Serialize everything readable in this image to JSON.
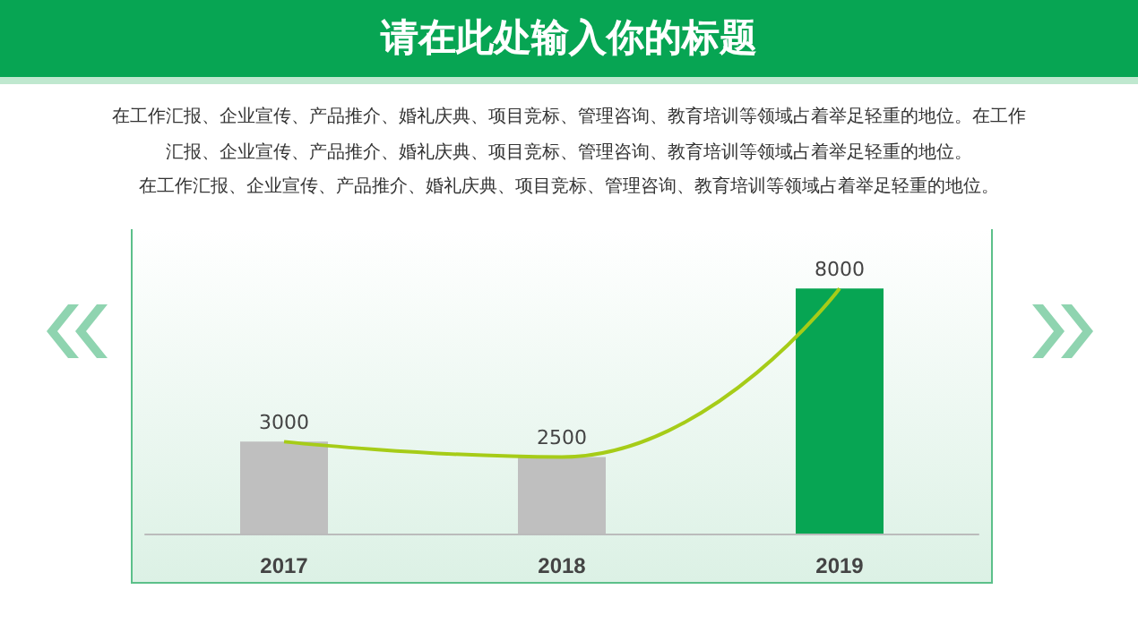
{
  "chart_data": {
    "type": "bar",
    "title": "请在此处输入你的标题",
    "subtitle": "在工作汇报、企业宣传、产品推介、婚礼庆典、项目竞标、管理咨询、教育培训等领域占着举足轻重的地位。在工作汇报、企业宣传、产品推介、婚礼庆典、项目竞标、管理咨询、教育培训等领域占着举足轻重的地位。",
    "annotations": [
      "在工作汇报、企业宣传、产品推介、婚礼庆典、项目竞标、管理咨询、教育培训等领域占着举足轻重的地位。"
    ],
    "categories": [
      "2017",
      "2018",
      "2019"
    ],
    "series": [
      {
        "colors": [
          "#bfbfbf",
          "#bfbfbf",
          "#07a553"
        ],
        "values": [
          3000,
          2500,
          8000
        ],
        "value_labels": [
          "3000",
          "2500",
          "8000"
        ]
      },
      {
        "type": "line",
        "color": "#a6cc18",
        "values": [
          3000,
          2500,
          8000
        ]
      }
    ],
    "marker": "none"
  }
}
